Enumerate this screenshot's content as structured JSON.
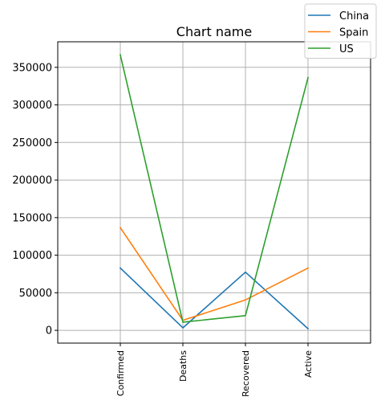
{
  "chart_data": {
    "type": "line",
    "title": "Chart name",
    "xlabel": "",
    "ylabel": "",
    "categories": [
      "Confirmed",
      "Deaths",
      "Recovered",
      "Active"
    ],
    "series": [
      {
        "name": "China",
        "color": "#1f77b4",
        "values": [
          82930,
          3338,
          77413,
          2179
        ]
      },
      {
        "name": "Spain",
        "color": "#ff7f0e",
        "values": [
          136675,
          13341,
          40437,
          82897
        ]
      },
      {
        "name": "US",
        "color": "#2ca02c",
        "values": [
          366614,
          10871,
          19581,
          336162
        ]
      }
    ],
    "yticks": [
      0,
      50000,
      100000,
      150000,
      200000,
      250000,
      300000,
      350000
    ],
    "ylim": [
      -17000,
      384000
    ],
    "grid": true,
    "legend_position": "top-right"
  }
}
